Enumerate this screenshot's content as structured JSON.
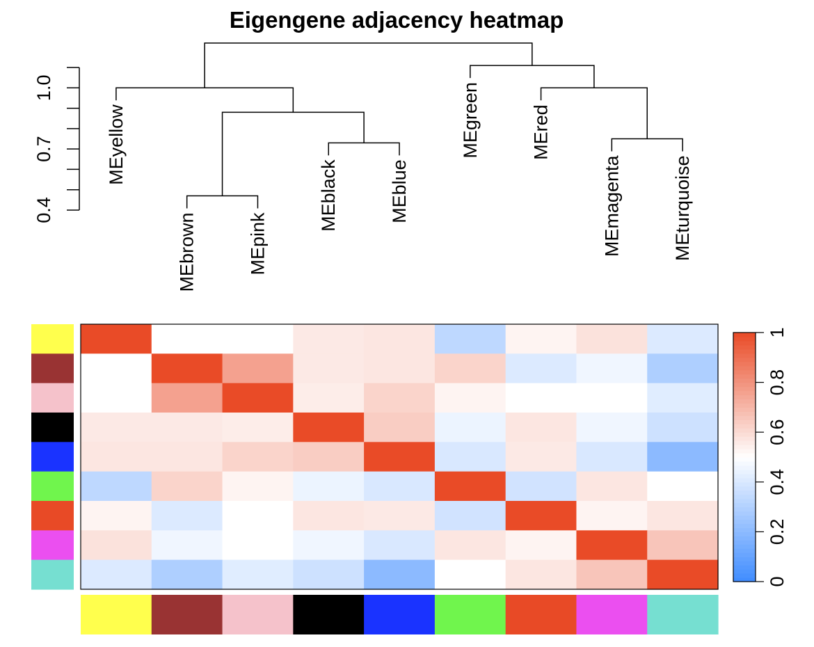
{
  "chart_data": {
    "type": "heatmap",
    "title": "Eigengene adjacency heatmap",
    "dendrogram": {
      "order": [
        "MEyellow",
        "MEbrown",
        "MEpink",
        "MEblack",
        "MEblue",
        "MEgreen",
        "MEred",
        "MEmagenta",
        "MEturquoise"
      ],
      "ylim": [
        0.4,
        1.1
      ],
      "yticks": [
        0.4,
        0.7,
        1.0
      ],
      "ytick_labels": [
        "0.4",
        "0.7",
        "1.0"
      ],
      "minor_ticks": [
        0.5,
        0.6,
        0.8,
        0.9,
        1.1
      ],
      "merges": [
        {
          "a": {
            "leaf": 1
          },
          "b": {
            "leaf": 2
          },
          "height": 0.47
        },
        {
          "a": {
            "leaf": 3
          },
          "b": {
            "leaf": 4
          },
          "height": 0.73
        },
        {
          "a": {
            "merge": 0
          },
          "b": {
            "merge": 1
          },
          "height": 0.88
        },
        {
          "a": {
            "leaf": 0
          },
          "b": {
            "merge": 2
          },
          "height": 1.0
        },
        {
          "a": {
            "leaf": 7
          },
          "b": {
            "leaf": 8
          },
          "height": 0.75
        },
        {
          "a": {
            "leaf": 6
          },
          "b": {
            "merge": 4
          },
          "height": 1.0
        },
        {
          "a": {
            "leaf": 5
          },
          "b": {
            "merge": 5
          },
          "height": 1.11
        },
        {
          "a": {
            "merge": 3
          },
          "b": {
            "merge": 6
          },
          "height": 1.22
        }
      ]
    },
    "module_colors": [
      "#ffff4d",
      "#993333",
      "#f5c2cb",
      "#000000",
      "#1a33ff",
      "#70f54d",
      "#e84a26",
      "#eb4ff0",
      "#76dfd1"
    ],
    "matrix": [
      [
        1.0,
        0.5,
        0.5,
        0.56,
        0.57,
        0.33,
        0.53,
        0.58,
        0.41
      ],
      [
        0.5,
        1.0,
        0.76,
        0.56,
        0.57,
        0.62,
        0.41,
        0.46,
        0.29
      ],
      [
        0.5,
        0.76,
        1.0,
        0.55,
        0.62,
        0.53,
        0.5,
        0.5,
        0.42
      ],
      [
        0.56,
        0.56,
        0.55,
        1.0,
        0.64,
        0.45,
        0.57,
        0.46,
        0.37
      ],
      [
        0.57,
        0.57,
        0.62,
        0.64,
        1.0,
        0.4,
        0.56,
        0.4,
        0.2
      ],
      [
        0.33,
        0.62,
        0.53,
        0.45,
        0.4,
        1.0,
        0.38,
        0.57,
        0.5
      ],
      [
        0.53,
        0.41,
        0.5,
        0.57,
        0.56,
        0.38,
        1.0,
        0.53,
        0.57
      ],
      [
        0.58,
        0.46,
        0.5,
        0.46,
        0.4,
        0.57,
        0.53,
        1.0,
        0.66
      ],
      [
        0.41,
        0.29,
        0.42,
        0.37,
        0.2,
        0.5,
        0.57,
        0.66,
        1.0
      ]
    ],
    "color_scale": {
      "min": 0,
      "max": 1,
      "low": "#3f8cff",
      "mid": "#ffffff",
      "high": "#e94b27",
      "ticks": [
        0,
        0.2,
        0.4,
        0.6,
        0.8,
        1
      ],
      "tick_labels": [
        "0",
        "0.2",
        "0.4",
        "0.6",
        "0.8",
        "1"
      ]
    }
  }
}
